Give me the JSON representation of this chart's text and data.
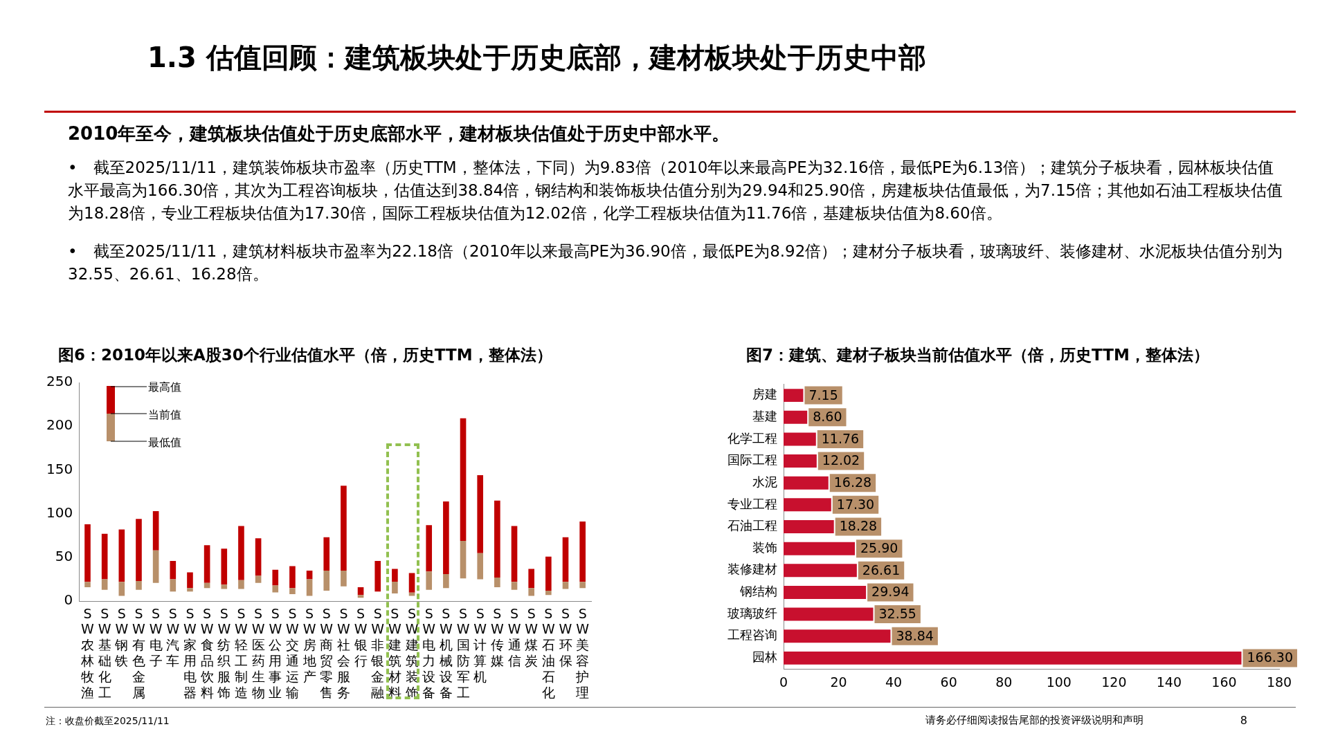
{
  "chart_data": [
    {
      "type": "other",
      "title": "1.3 估值回顾：建筑板块处于历史底部，建材板块处于历史中部",
      "subtitle": "2010年至今，建筑板块估值处于历史底部水平，建材板块估值处于历史中部水平。",
      "annotations": [
        "•　截至2025/11/11，建筑装饰板块市盈率（历史TTM，整体法，下同）为9.83倍（2010年以来最高PE为32.16倍，最低PE为6.13倍）；建筑分子板块看，园林板块估值水平最高为166.30倍，其次为工程咨询板块，估值达到38.84倍，钢结构和装饰板块估值分别为29.94和25.90倍，房建板块估值最低，为7.15倍；其他如石油工程板块估值为18.28倍，专业工程板块估值为17.30倍，国际工程板块估值为12.02倍，化学工程板块估值为11.76倍，基建板块估值为8.60倍。",
        "•　截至2025/11/11，建筑材料板块市盈率为22.18倍（2010年以来最高PE为36.90倍，最低PE为8.92倍）；建材分子板块看，玻璃玻纤、装修建材、水泥板块估值分别为32.55、26.61、16.28倍。",
        "注：收盘价截至2025/11/11",
        "请务必仔细阅读报告尾部的投资评级说明和声明",
        "8"
      ]
    },
    {
      "type": "bar",
      "title": "图6：2010年以来A股30个行业估值水平（倍，历史TTM，整体法）",
      "categories": [
        "SW农林牧渔",
        "SW基础化工",
        "SW钢铁",
        "SW有色金属",
        "SW电子",
        "SW汽车",
        "SW家用电器",
        "SW食品饮料",
        "SW纺织服饰",
        "SW轻工制造",
        "SW医药生物",
        "SW公用事业",
        "SW交通运输",
        "SW房地产",
        "SW商贸零售",
        "SW社会服务",
        "SW银行",
        "SW非银金融",
        "SW建筑材料",
        "SW建筑装饰",
        "SW电力设备",
        "SW机械设备",
        "SW国防军工",
        "SW计算机",
        "SW传媒",
        "SW通信",
        "SW煤炭",
        "SW石油石化",
        "SW环保",
        "SW美容护理"
      ],
      "series": [
        {
          "color": "#b8906a",
          "base": [
            16,
            13,
            6,
            13,
            21,
            11,
            11,
            15,
            14,
            14,
            21,
            10,
            8,
            6,
            12,
            17,
            4,
            null,
            8.9,
            6.1,
            13,
            15,
            26,
            25,
            16,
            13,
            6,
            7,
            14,
            15
          ],
          "values": [
            6,
            12,
            16,
            10,
            37,
            14,
            4,
            6,
            5,
            10,
            8,
            8,
            7,
            19,
            23,
            18,
            3,
            null,
            13.3,
            3.7,
            21,
            16,
            43,
            30,
            11,
            9,
            9,
            5,
            8,
            7
          ]
        },
        {
          "color": "#c00000",
          "base": [
            22,
            25,
            22,
            23,
            58,
            25,
            15,
            21,
            19,
            24,
            29,
            18,
            15,
            25,
            35,
            35,
            7,
            11,
            22.2,
            9.8,
            34,
            31,
            69,
            55,
            27,
            22,
            15,
            12,
            22,
            22
          ],
          "values": [
            66,
            52,
            60,
            71,
            45,
            21,
            18,
            43,
            41,
            62,
            43,
            18,
            25,
            10,
            38,
            97,
            9,
            35,
            14.7,
            22.3,
            53,
            83,
            140,
            89,
            88,
            64,
            22,
            39,
            51,
            69
          ]
        }
      ],
      "ylim": [
        0,
        250
      ],
      "yticks": [
        0,
        50,
        100,
        150,
        200,
        250
      ],
      "grid": false,
      "legend": false,
      "annotations": [
        "最高值",
        "当前值",
        "最低值"
      ]
    },
    {
      "type": "bar",
      "orientation": "horizontal",
      "title": "图7：建筑、建材子板块当前估值水平（倍，历史TTM，整体法）",
      "categories": [
        "房建",
        "基建",
        "化学工程",
        "国际工程",
        "水泥",
        "专业工程",
        "石油工程",
        "装饰",
        "装修建材",
        "钢结构",
        "玻璃玻纤",
        "工程咨询",
        "园林"
      ],
      "values": [
        7.15,
        8.6,
        11.76,
        12.02,
        16.28,
        17.3,
        18.28,
        25.9,
        26.61,
        29.94,
        32.55,
        38.84,
        166.3
      ],
      "value_labels": [
        "7.15",
        "8.60",
        "11.76",
        "12.02",
        "16.28",
        "17.30",
        "18.28",
        "25.90",
        "26.61",
        "29.94",
        "32.55",
        "38.84",
        "166.30"
      ],
      "color": "#c8102e",
      "xlim": [
        0,
        180
      ],
      "xticks": [
        0,
        20,
        40,
        60,
        80,
        100,
        120,
        140,
        160,
        180
      ],
      "grid": false,
      "legend": false
    }
  ]
}
